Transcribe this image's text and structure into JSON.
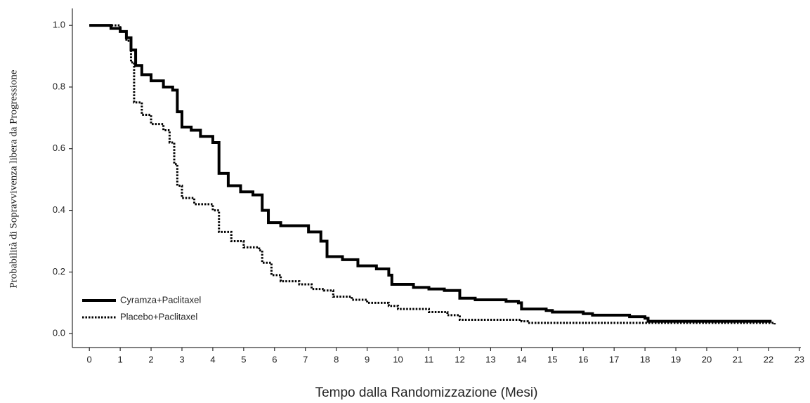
{
  "chart_data": {
    "type": "line",
    "step": "post",
    "x_label": "Tempo dalla Randomizzazione (Mesi)",
    "y_label": "Probabilità di Sopravvivenza libera da Progressione",
    "xlim": [
      -0.55,
      23.05
    ],
    "ylim": [
      -0.045,
      1.055
    ],
    "xticks": [
      0,
      1,
      2,
      3,
      4,
      5,
      6,
      7,
      8,
      9,
      10,
      11,
      12,
      13,
      14,
      15,
      16,
      17,
      18,
      19,
      20,
      21,
      22,
      23
    ],
    "yticks": [
      {
        "value": 0,
        "label": "0.0"
      },
      0.2,
      0.4,
      0.6,
      0.8,
      {
        "value": 1,
        "label": "1.0"
      }
    ],
    "legend": "lower left",
    "series": [
      {
        "name": "Cyramza+Paclitaxel",
        "color": "#000000",
        "linestyle": "solid",
        "x": [
          0,
          0.5,
          0.7,
          1.0,
          1.2,
          1.35,
          1.5,
          1.7,
          2.0,
          2.4,
          2.7,
          2.85,
          3.0,
          3.3,
          3.6,
          4.0,
          4.2,
          4.5,
          4.9,
          5.3,
          5.6,
          5.8,
          6.2,
          6.9,
          7.1,
          7.5,
          7.7,
          8.2,
          8.7,
          9.3,
          9.7,
          9.8,
          10.5,
          11.0,
          11.5,
          12.0,
          12.5,
          13.5,
          13.9,
          14.0,
          14.8,
          15.0,
          16.0,
          16.3,
          17.5,
          18.0,
          18.1,
          22.1
        ],
        "values": [
          1.0,
          1.0,
          0.99,
          0.98,
          0.96,
          0.92,
          0.87,
          0.84,
          0.82,
          0.8,
          0.79,
          0.72,
          0.67,
          0.66,
          0.64,
          0.62,
          0.52,
          0.48,
          0.46,
          0.45,
          0.4,
          0.36,
          0.35,
          0.35,
          0.33,
          0.3,
          0.25,
          0.24,
          0.22,
          0.21,
          0.19,
          0.16,
          0.15,
          0.145,
          0.14,
          0.115,
          0.11,
          0.105,
          0.1,
          0.08,
          0.075,
          0.07,
          0.065,
          0.06,
          0.055,
          0.05,
          0.04,
          0.04
        ]
      },
      {
        "name": "Placebo+Paclitaxel",
        "color": "#000000",
        "linestyle": "dotted",
        "x": [
          0,
          0.5,
          1.0,
          1.2,
          1.35,
          1.45,
          1.7,
          2.0,
          2.4,
          2.6,
          2.75,
          2.85,
          3.0,
          3.4,
          4.0,
          4.2,
          4.6,
          5.0,
          5.5,
          5.6,
          5.9,
          6.2,
          6.8,
          7.2,
          7.6,
          7.9,
          8.5,
          9.0,
          9.7,
          10.0,
          11.0,
          11.6,
          12.0,
          14.0,
          14.2,
          22.2
        ],
        "values": [
          1.0,
          1.0,
          0.98,
          0.95,
          0.88,
          0.75,
          0.71,
          0.68,
          0.66,
          0.62,
          0.55,
          0.48,
          0.44,
          0.42,
          0.4,
          0.33,
          0.3,
          0.28,
          0.27,
          0.23,
          0.19,
          0.17,
          0.16,
          0.145,
          0.14,
          0.12,
          0.11,
          0.1,
          0.09,
          0.08,
          0.07,
          0.06,
          0.045,
          0.04,
          0.035,
          0.03
        ]
      }
    ]
  }
}
